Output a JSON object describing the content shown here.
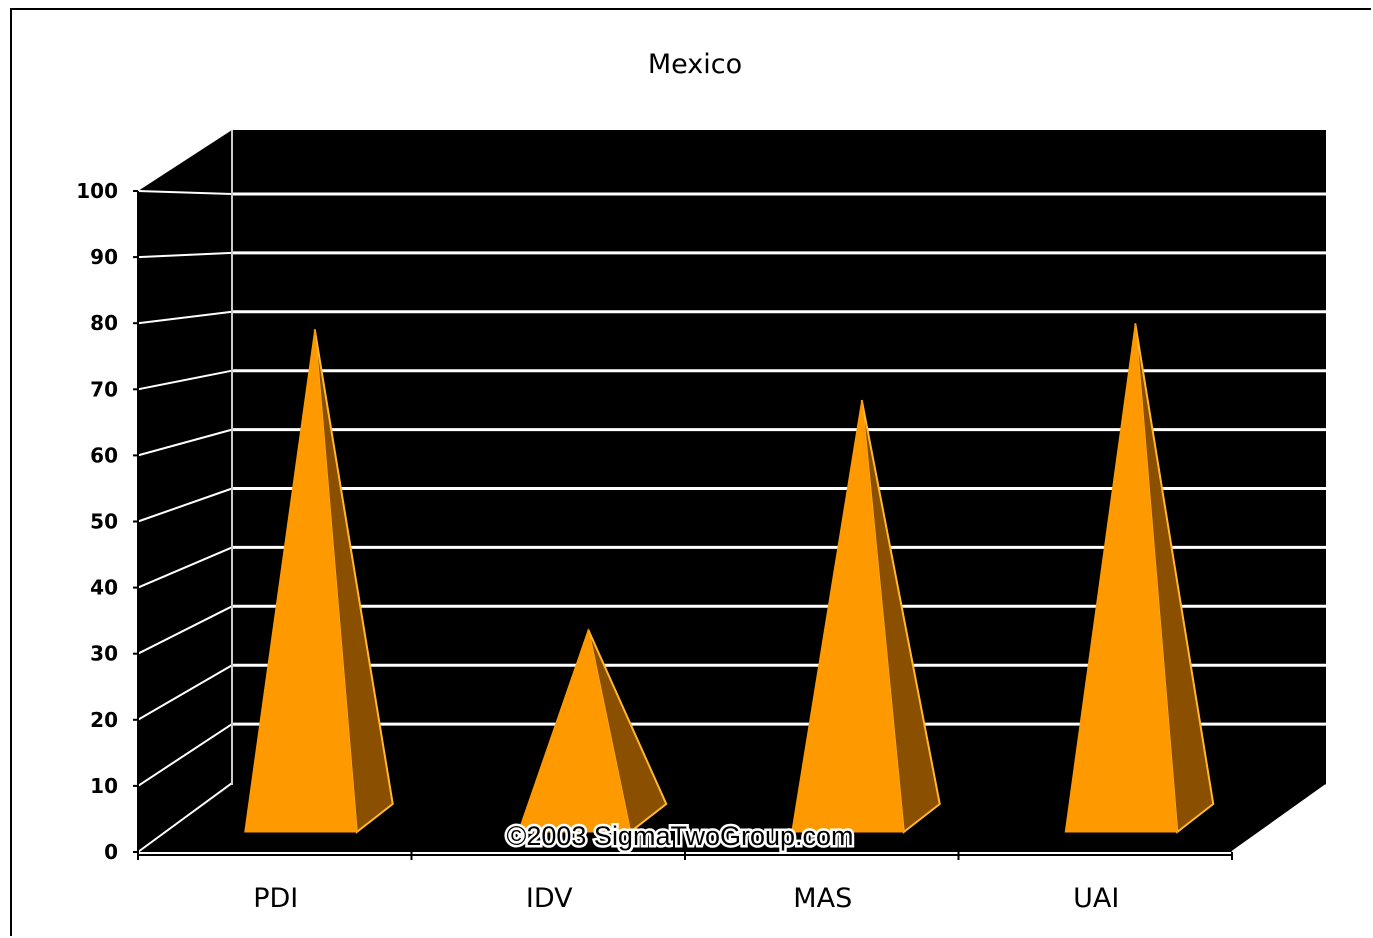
{
  "chart_data": {
    "type": "bar",
    "bar_shape": "3d-pyramid",
    "title": "Mexico",
    "categories": [
      "PDI",
      "IDV",
      "MAS",
      "UAI"
    ],
    "values": [
      81,
      30,
      69,
      82
    ],
    "ylim": [
      0,
      100
    ],
    "y_ticks": [
      "0",
      "10",
      "20",
      "30",
      "40",
      "50",
      "60",
      "70",
      "80",
      "90",
      "100"
    ],
    "grid": true,
    "legend": "none",
    "watermark": "©2003 SigmaTwoGroup.com",
    "colors": {
      "plot_background": "#000000",
      "gridline": "#ffffff",
      "bar_front": "#ff9900",
      "bar_side": "#8a5000",
      "bar_edge": "#ffb733"
    }
  }
}
